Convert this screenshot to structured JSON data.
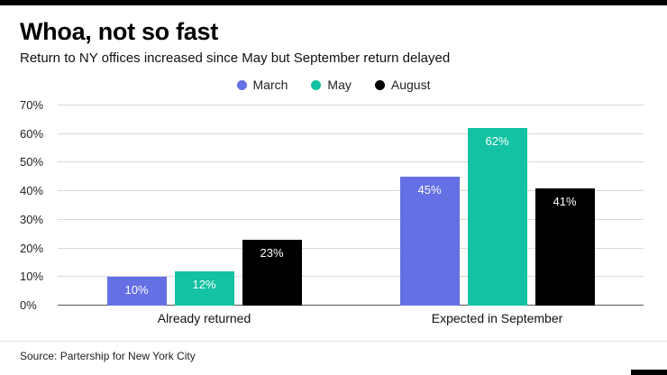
{
  "chart_data": {
    "type": "bar",
    "title": "Whoa, not so fast",
    "subtitle": "Return to NY offices increased since May but September return delayed",
    "categories": [
      "Already returned",
      "Expected in September"
    ],
    "series": [
      {
        "name": "March",
        "color": "#6470e4",
        "values": [
          10,
          45
        ]
      },
      {
        "name": "May",
        "color": "#12c2a2",
        "values": [
          12,
          62
        ]
      },
      {
        "name": "August",
        "color": "#000000",
        "values": [
          23,
          41
        ]
      }
    ],
    "ytick_labels": [
      "0%",
      "10%",
      "20%",
      "30%",
      "40%",
      "50%",
      "60%",
      "70%"
    ],
    "ylim": [
      0,
      70
    ],
    "grid": true,
    "legend_position": "top",
    "bar_label_format": "percent",
    "source": "Source: Partership for New York City",
    "colors": {
      "accent_bar": "#000000",
      "gridline": "#d8d8d8",
      "baseline": "#555555",
      "bar_label_text": "#ffffff"
    }
  }
}
